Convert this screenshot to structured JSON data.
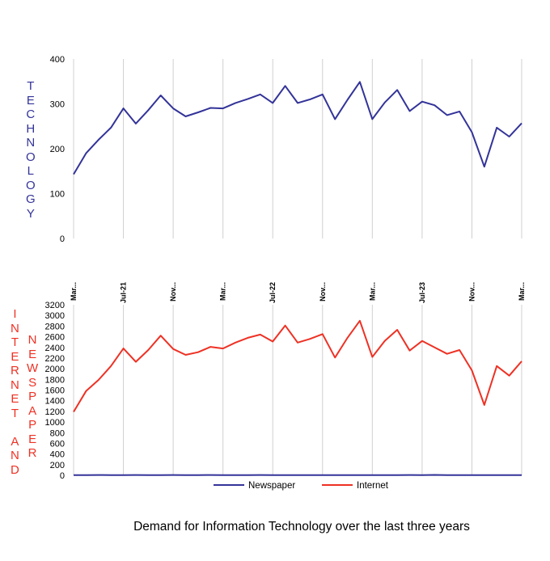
{
  "title": "Demand for Information Technology over the last three years",
  "colors": {
    "technology": "#333399",
    "newspaper": "#333399",
    "internet": "#ee3124",
    "grid": "#d0d0d0"
  },
  "chart_data": [
    {
      "type": "line",
      "ylabel": "TECHNOLOGY",
      "ylim": [
        0,
        400
      ],
      "yticks": [
        "0",
        "100",
        "200",
        "300",
        "400"
      ],
      "ytick_values": [
        0,
        100,
        200,
        300,
        400
      ],
      "xtick_labels": [
        "Mar...",
        "Jul-21",
        "Nov...",
        "Mar...",
        "Jul-22",
        "Nov...",
        "Mar...",
        "Jul-23",
        "Nov...",
        "Mar..."
      ],
      "xtick_interval_months": 4,
      "grid": "vertical",
      "x": [
        "2021-03",
        "2021-04",
        "2021-05",
        "2021-06",
        "2021-07",
        "2021-08",
        "2021-09",
        "2021-10",
        "2021-11",
        "2021-12",
        "2022-01",
        "2022-02",
        "2022-03",
        "2022-04",
        "2022-05",
        "2022-06",
        "2022-07",
        "2022-08",
        "2022-09",
        "2022-10",
        "2022-11",
        "2022-12",
        "2023-01",
        "2023-02",
        "2023-03",
        "2023-04",
        "2023-05",
        "2023-06",
        "2023-07",
        "2023-08",
        "2023-09",
        "2023-10",
        "2023-11",
        "2023-12",
        "2024-01",
        "2024-02",
        "2024-03"
      ],
      "series": [
        {
          "name": "Technology",
          "values": [
            143,
            190,
            220,
            247,
            290,
            256,
            286,
            319,
            290,
            272,
            281,
            291,
            290,
            302,
            311,
            321,
            302,
            340,
            302,
            310,
            321,
            266,
            309,
            349,
            266,
            303,
            331,
            284,
            305,
            297,
            275,
            283,
            237,
            160,
            247,
            227,
            257
          ]
        }
      ]
    },
    {
      "type": "line",
      "ylabel_left": "INTERNET AND",
      "ylabel_right": "NEWSPAPER",
      "ylim": [
        0,
        3200
      ],
      "yticks": [
        "0",
        "200",
        "400",
        "600",
        "800",
        "1000",
        "1200",
        "1400",
        "1600",
        "1800",
        "2000",
        "2200",
        "2400",
        "2600",
        "2800",
        "3000",
        "3200"
      ],
      "ytick_values": [
        0,
        200,
        400,
        600,
        800,
        1000,
        1200,
        1400,
        1600,
        1800,
        2000,
        2200,
        2400,
        2600,
        2800,
        3000,
        3200
      ],
      "grid": "vertical",
      "legend": "bottom",
      "series": [
        {
          "name": "Newspaper",
          "values": [
            5,
            4,
            6,
            5,
            4,
            6,
            5,
            5,
            6,
            4,
            5,
            6,
            5,
            5,
            4,
            6,
            5,
            4,
            5,
            5,
            5,
            4,
            5,
            5,
            4,
            5,
            5,
            6,
            5,
            7,
            5,
            5,
            4,
            5,
            4,
            5,
            5
          ]
        },
        {
          "name": "Internet",
          "values": [
            1190,
            1580,
            1790,
            2050,
            2380,
            2130,
            2350,
            2620,
            2370,
            2260,
            2310,
            2410,
            2380,
            2490,
            2580,
            2640,
            2510,
            2810,
            2490,
            2560,
            2650,
            2210,
            2580,
            2900,
            2220,
            2520,
            2730,
            2340,
            2520,
            2400,
            2280,
            2350,
            1970,
            1320,
            2050,
            1870,
            2140
          ]
        }
      ]
    }
  ]
}
